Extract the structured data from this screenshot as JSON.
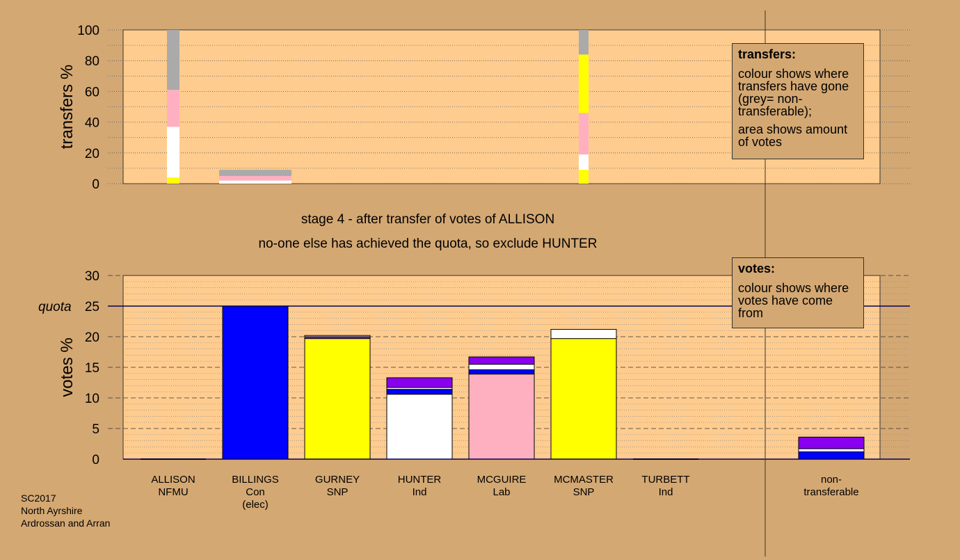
{
  "colors": {
    "background": "#d4a873",
    "plot_bg": "#ffcc8f",
    "NFMU": "#ffff00",
    "Con": "#0000ff",
    "SNP": "#ffff00",
    "Ind": "#ffffff",
    "Lab": "#ffb0c0",
    "TURBETT": "#8800ee",
    "nontransferable": "#aaaaaa"
  },
  "header": {
    "stage_line1": "stage 4 - after transfer of votes of ALLISON",
    "stage_line2": "no-one else has achieved the quota, so exclude HUNTER"
  },
  "legend_transfers": {
    "title": "transfers:",
    "para1": "colour shows where transfers have gone (grey= non-transferable);",
    "para2": "area shows amount of votes"
  },
  "legend_votes": {
    "title": "votes:",
    "para1": "colour shows where votes have come from"
  },
  "footer": {
    "line1": "SC2017",
    "line2": "North Ayrshire",
    "line3": "Ardrossan and Arran"
  },
  "chart_data": [
    {
      "type": "bar",
      "stacked": true,
      "ylabel": "transfers %",
      "ylim": [
        0,
        100
      ],
      "yticks": [
        0,
        20,
        40,
        60,
        80,
        100
      ],
      "bars": [
        {
          "candidate": "ALLISON",
          "segments": [
            {
              "party": "NFMU",
              "value": 4
            },
            {
              "party": "Ind",
              "value": 33
            },
            {
              "party": "Lab",
              "value": 24
            },
            {
              "party": "nontransferable",
              "value": 39
            }
          ]
        },
        {
          "candidate": "BILLINGS",
          "segments": [
            {
              "party": "Ind",
              "value": 2
            },
            {
              "party": "Lab",
              "value": 3
            },
            {
              "party": "nontransferable",
              "value": 4
            }
          ]
        },
        {
          "candidate": "MCMASTER",
          "segments": [
            {
              "party": "SNP",
              "value": 9
            },
            {
              "party": "Ind",
              "value": 10
            },
            {
              "party": "Lab",
              "value": 27
            },
            {
              "party": "SNP",
              "value": 38
            },
            {
              "party": "nontransferable",
              "value": 16
            }
          ]
        }
      ]
    },
    {
      "type": "bar",
      "stacked": true,
      "ylabel": "votes %",
      "ylim": [
        0,
        30
      ],
      "yticks": [
        0,
        5,
        10,
        15,
        20,
        25,
        30
      ],
      "quota": 25,
      "quota_label": "quota",
      "categories": [
        {
          "name": "ALLISON",
          "party": "NFMU",
          "extra": ""
        },
        {
          "name": "BILLINGS",
          "party": "Con",
          "extra": "(elec)"
        },
        {
          "name": "GURNEY",
          "party": "SNP",
          "extra": ""
        },
        {
          "name": "HUNTER",
          "party": "Ind",
          "extra": ""
        },
        {
          "name": "MCGUIRE",
          "party": "Lab",
          "extra": ""
        },
        {
          "name": "MCMASTER",
          "party": "SNP",
          "extra": ""
        },
        {
          "name": "TURBETT",
          "party": "Ind",
          "extra": ""
        }
      ],
      "nontransferable_label": [
        "non-",
        "transferable"
      ],
      "bars": [
        {
          "candidate": "ALLISON",
          "segments": []
        },
        {
          "candidate": "BILLINGS",
          "segments": [
            {
              "party": "Con",
              "value": 25.0
            }
          ]
        },
        {
          "candidate": "GURNEY",
          "segments": [
            {
              "party": "SNP",
              "value": 19.7
            },
            {
              "party": "TURBETT",
              "value": 0.3
            },
            {
              "party": "Ind",
              "value": 0.2
            }
          ]
        },
        {
          "candidate": "HUNTER",
          "segments": [
            {
              "party": "Ind",
              "value": 10.6
            },
            {
              "party": "Con",
              "value": 0.8
            },
            {
              "party": "Ind",
              "value": 0.3
            },
            {
              "party": "TURBETT",
              "value": 1.6
            }
          ]
        },
        {
          "candidate": "MCGUIRE",
          "segments": [
            {
              "party": "Lab",
              "value": 13.9
            },
            {
              "party": "Con",
              "value": 0.7
            },
            {
              "party": "Ind",
              "value": 0.9
            },
            {
              "party": "TURBETT",
              "value": 1.2
            }
          ]
        },
        {
          "candidate": "MCMASTER",
          "segments": [
            {
              "party": "SNP",
              "value": 19.7
            },
            {
              "party": "Ind",
              "value": 1.5
            }
          ]
        },
        {
          "candidate": "TURBETT",
          "segments": []
        },
        {
          "candidate": "non-transferable",
          "segments": [
            {
              "party": "Con",
              "value": 1.2
            },
            {
              "party": "Ind",
              "value": 0.5
            },
            {
              "party": "TURBETT",
              "value": 1.9
            }
          ]
        }
      ]
    }
  ]
}
